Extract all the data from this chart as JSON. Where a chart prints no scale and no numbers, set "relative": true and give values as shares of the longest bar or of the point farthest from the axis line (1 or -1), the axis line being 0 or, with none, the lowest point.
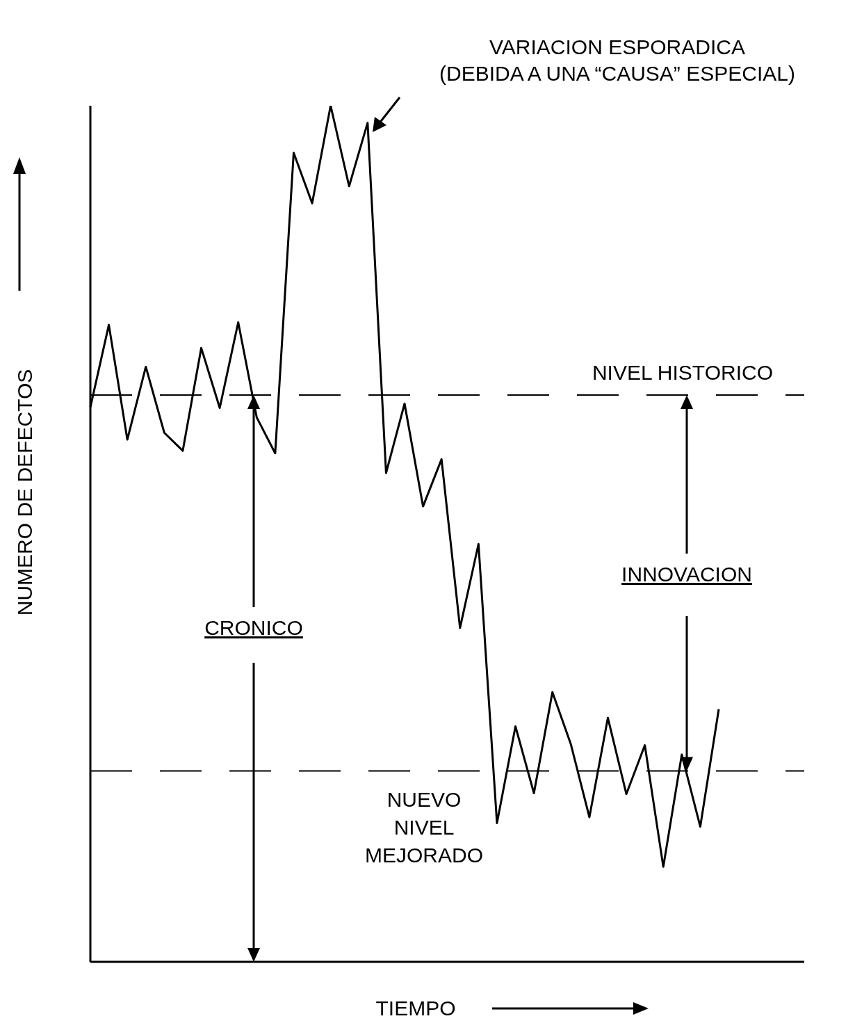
{
  "chart_data": {
    "type": "line",
    "relative": true,
    "xlabel": "TIEMPO",
    "ylabel": "NUMERO DE DEFECTOS",
    "categories": [
      null,
      null,
      null,
      null,
      null,
      null,
      null,
      null,
      null,
      null,
      null,
      null,
      null,
      null,
      null,
      null,
      null,
      null,
      null,
      null,
      null,
      null,
      null,
      null,
      null,
      null,
      null,
      null,
      null,
      null,
      null,
      null,
      null,
      null,
      null
    ],
    "series": [
      {
        "color": "#000000",
        "values": [
          0.648,
          0.744,
          0.61,
          0.695,
          0.618,
          0.597,
          0.717,
          0.647,
          0.747,
          0.636,
          0.594,
          0.945,
          0.886,
          1.0,
          0.906,
          0.98,
          0.571,
          0.652,
          0.532,
          0.587,
          0.39,
          0.488,
          0.162,
          0.275,
          0.197,
          0.315,
          0.254,
          0.169,
          0.285,
          0.196,
          0.253,
          0.111,
          0.242,
          0.158,
          0.295
        ]
      }
    ],
    "ref_lines": [
      {
        "axis": "y",
        "value": 0.662,
        "label": "NIVEL HISTORICO",
        "line_style": "dashed",
        "color": "#000000"
      },
      {
        "axis": "y",
        "value": 0.223,
        "label": "NUEVO NIVEL MEJORADO",
        "line_style": "dashed",
        "color": "#000000"
      }
    ],
    "annotations": [
      "VARIACION ESPORADICA (DEBIDA A UNA “CAUSA” ESPECIAL)",
      "CRONICO",
      "INNOVACION"
    ],
    "grid": false,
    "legend": false
  }
}
